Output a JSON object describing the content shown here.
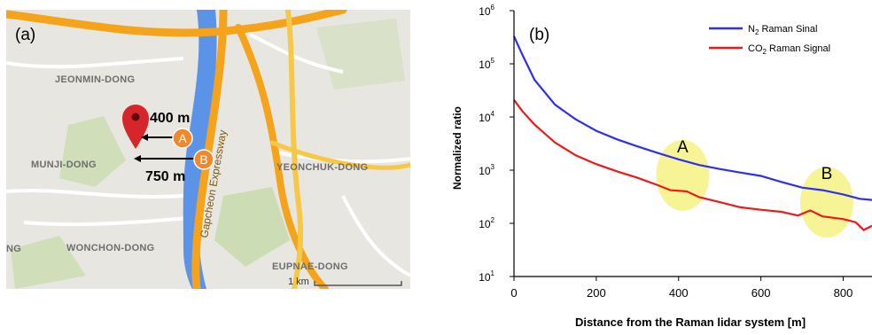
{
  "panel_a": {
    "label": "(a)",
    "districts": [
      "JEONMIN-DONG",
      "MUNJI-DONG",
      "WONCHON-DONG",
      "YEONCHUK-DONG",
      "EUPNAE-DONG",
      "NG"
    ],
    "road_name": "Gapcheon Expressway",
    "distance_a": "400 m",
    "distance_b": "750 m",
    "marker_a": "A",
    "marker_b": "B",
    "scale_label": "1 km",
    "colors": {
      "map_bg": "#e8e6e1",
      "river": "#5b93e8",
      "road": "#f5a31a",
      "park": "#c9dcb0",
      "pin": "#d7262b",
      "marker": "#f0892e"
    }
  },
  "chart_data": {
    "type": "line",
    "panel_label": "(b)",
    "xlabel": "Distance from the Raman lidar system [m]",
    "ylabel": "Normalized ratio",
    "y_scale": "log",
    "xlim": [
      0,
      870
    ],
    "ylim": [
      10,
      1000000
    ],
    "x_ticks": [
      0,
      200,
      400,
      600,
      800
    ],
    "y_ticks": [
      {
        "value": 10,
        "base": "10",
        "exp": "1"
      },
      {
        "value": 100,
        "base": "10",
        "exp": "2"
      },
      {
        "value": 1000,
        "base": "10",
        "exp": "3"
      },
      {
        "value": 10000,
        "base": "10",
        "exp": "4"
      },
      {
        "value": 100000,
        "base": "10",
        "exp": "5"
      },
      {
        "value": 1000000,
        "base": "10",
        "exp": "6"
      }
    ],
    "legend_position": "top-right",
    "legend": [
      {
        "main": "N",
        "sub": "2",
        "rest": " Raman Sinal"
      },
      {
        "main": "CO",
        "sub": "2",
        "rest": " Raman Signal"
      }
    ],
    "series": [
      {
        "color": "#2e2ef5",
        "points": [
          [
            0,
            330000
          ],
          [
            20,
            150000
          ],
          [
            50,
            50000
          ],
          [
            100,
            17000
          ],
          [
            150,
            9000
          ],
          [
            200,
            5500
          ],
          [
            250,
            3800
          ],
          [
            300,
            2800
          ],
          [
            350,
            2100
          ],
          [
            400,
            1600
          ],
          [
            450,
            1250
          ],
          [
            500,
            1050
          ],
          [
            550,
            900
          ],
          [
            600,
            780
          ],
          [
            650,
            600
          ],
          [
            700,
            470
          ],
          [
            750,
            420
          ],
          [
            800,
            350
          ],
          [
            840,
            290
          ],
          [
            870,
            275
          ]
        ]
      },
      {
        "color": "#f01818",
        "points": [
          [
            0,
            21000
          ],
          [
            20,
            13000
          ],
          [
            50,
            7200
          ],
          [
            100,
            3300
          ],
          [
            150,
            1900
          ],
          [
            200,
            1300
          ],
          [
            250,
            950
          ],
          [
            300,
            720
          ],
          [
            350,
            520
          ],
          [
            380,
            420
          ],
          [
            420,
            400
          ],
          [
            450,
            310
          ],
          [
            500,
            250
          ],
          [
            550,
            200
          ],
          [
            600,
            180
          ],
          [
            650,
            165
          ],
          [
            690,
            140
          ],
          [
            720,
            175
          ],
          [
            750,
            135
          ],
          [
            800,
            120
          ],
          [
            830,
            105
          ],
          [
            850,
            75
          ],
          [
            870,
            90
          ]
        ]
      }
    ],
    "annotations": [
      {
        "label": "A",
        "cx": 410,
        "cy": 800,
        "fill": "#f5f38a"
      },
      {
        "label": "B",
        "cx": 760,
        "cy": 250,
        "fill": "#f5f38a"
      }
    ]
  }
}
